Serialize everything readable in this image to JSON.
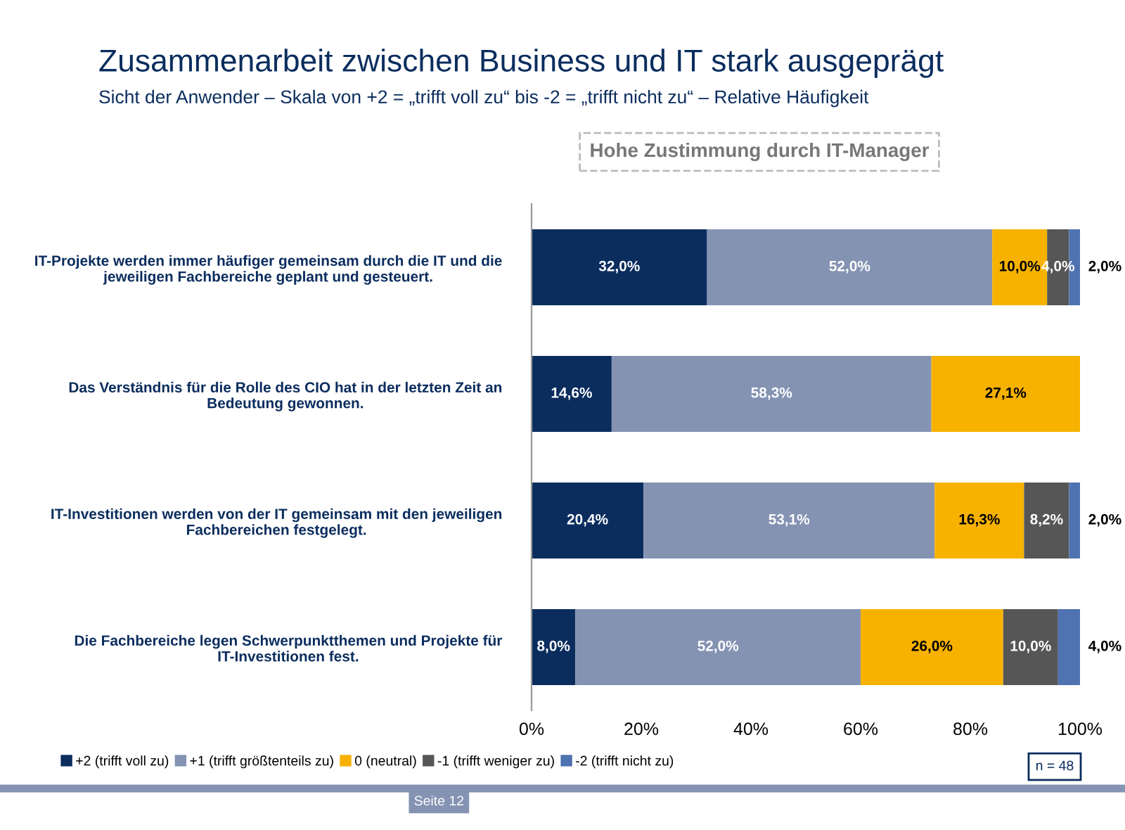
{
  "chart_data": {
    "type": "bar",
    "orientation": "horizontal",
    "stacked": true,
    "title": "Zusammenarbeit zwischen Business und IT stark ausgeprägt",
    "subtitle": "Sicht der Anwender – Skala von +2 = „trifft voll zu“ bis -2 = „trifft nicht zu“ – Relative Häufigkeit",
    "categories": [
      "IT-Projekte werden immer häufiger gemeinsam durch die IT und die jeweiligen Fachbereiche geplant und gesteuert.",
      "Das Verständnis für die Rolle des CIO hat in der letzten Zeit an Bedeutung gewonnen.",
      "IT-Investitionen werden von der IT gemeinsam mit den jeweiligen Fachbereichen festgelegt.",
      "Die Fachbereiche legen Schwerpunktthemen und Projekte für IT-Investitionen fest."
    ],
    "series": [
      {
        "name": "+2 (trifft voll zu)",
        "color": "#0b2d5e",
        "values": [
          32.0,
          14.6,
          20.4,
          8.0
        ],
        "value_labels": [
          "32,0%",
          "14,6%",
          "20,4%",
          "8,0%"
        ]
      },
      {
        "name": "+1 (trifft größtenteils zu)",
        "color": "#8593b3",
        "values": [
          52.0,
          58.3,
          53.1,
          52.0
        ],
        "value_labels": [
          "52,0%",
          "58,3%",
          "53,1%",
          "52,0%"
        ]
      },
      {
        "name": "0 (neutral)",
        "color": "#f7b200",
        "values": [
          10.0,
          27.1,
          16.3,
          26.0
        ],
        "value_labels": [
          "10,0%",
          "27,1%",
          "16,3%",
          "26,0%"
        ]
      },
      {
        "name": "-1 (trifft weniger zu)",
        "color": "#565656",
        "values": [
          4.0,
          null,
          8.2,
          10.0
        ],
        "value_labels": [
          "4,0%",
          null,
          "8,2%",
          "10,0%"
        ]
      },
      {
        "name": "-2 (trifft nicht zu)",
        "color": "#4f72b0",
        "values": [
          2.0,
          null,
          2.0,
          4.0
        ],
        "value_labels": [
          "2,0%",
          null,
          "2,0%",
          "4,0%"
        ]
      }
    ],
    "xlim": [
      0,
      100
    ],
    "xticks": [
      {
        "value": 0,
        "label": "0%"
      },
      {
        "value": 20,
        "label": "20%"
      },
      {
        "value": 40,
        "label": "40%"
      },
      {
        "value": 60,
        "label": "60%"
      },
      {
        "value": 80,
        "label": "80%"
      },
      {
        "value": 100,
        "label": "100%"
      }
    ],
    "legend": "bottom",
    "grid": false,
    "annotations": [
      "Hohe Zustimmung durch IT-Manager",
      "n = 48",
      "Seite 12"
    ]
  }
}
